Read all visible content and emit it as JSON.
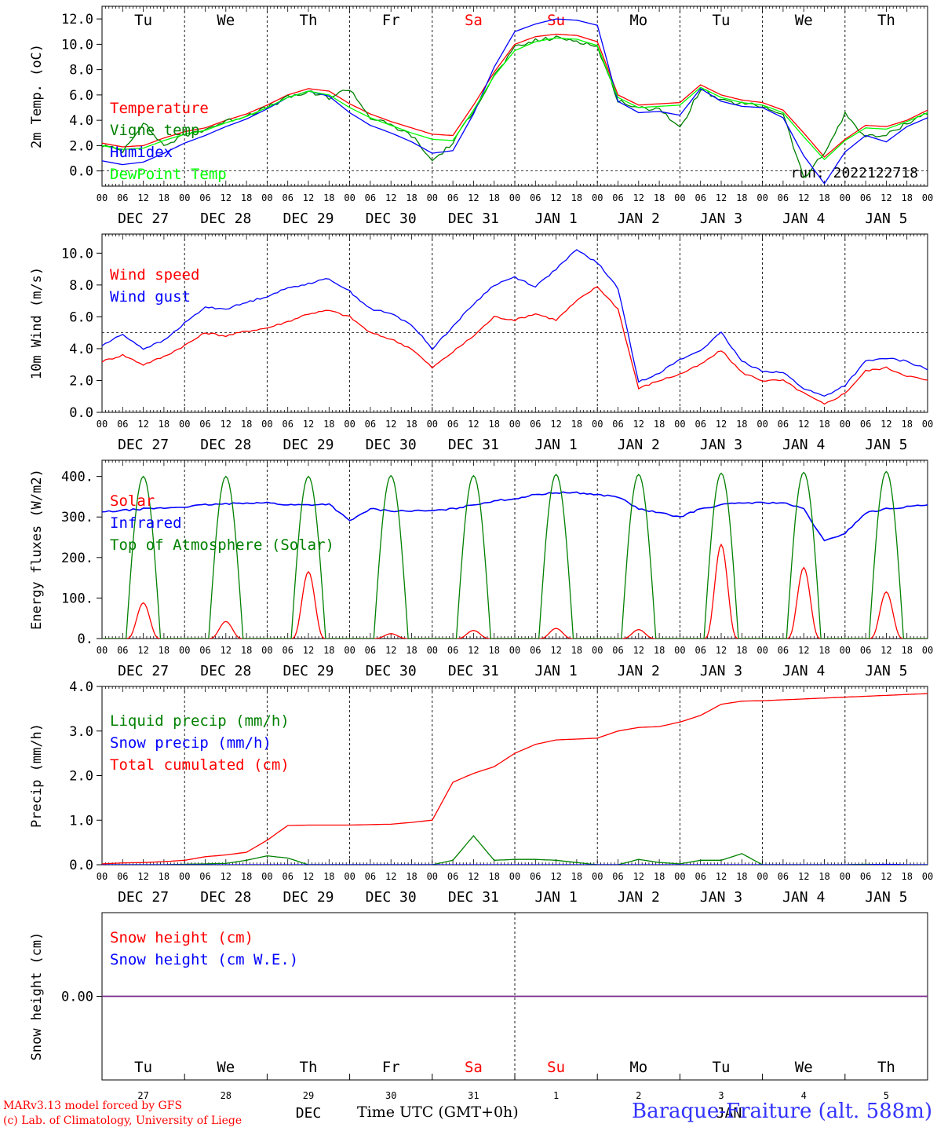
{
  "chart_data": [
    {
      "type": "line",
      "ylabel": "2m Temp. (oC)",
      "ylim": [
        -1.2,
        13.0
      ],
      "yticks": [
        0.0,
        2.0,
        4.0,
        6.0,
        8.0,
        10.0,
        12.0
      ],
      "ytick_labels": [
        "0.0",
        "2.0",
        "4.0",
        "6.0",
        "8.0",
        "10.0",
        "12.0"
      ],
      "reference_line": 0.0,
      "annotation": "run: 2022122718",
      "legend_placement": "left",
      "top_labels": [
        "Tu",
        "We",
        "Th",
        "Fr",
        "Sa",
        "Su",
        "Mo",
        "Tu",
        "We",
        "Th"
      ],
      "x": [
        0,
        6,
        12,
        18,
        24,
        30,
        36,
        42,
        48,
        54,
        60,
        66,
        72,
        78,
        84,
        90,
        96,
        102,
        108,
        114,
        120,
        126,
        132,
        138,
        144,
        150,
        156,
        162,
        168,
        174,
        180,
        186,
        192,
        198,
        204,
        210,
        216,
        222,
        228,
        234,
        240
      ],
      "series": [
        {
          "name": "Temperature",
          "color": "#ff0000",
          "values": [
            2.2,
            1.9,
            2.0,
            2.6,
            3.1,
            3.4,
            4.0,
            4.5,
            5.2,
            6.0,
            6.5,
            6.3,
            5.3,
            4.5,
            3.9,
            3.4,
            2.9,
            2.8,
            5.2,
            7.8,
            10.0,
            10.6,
            10.8,
            10.7,
            10.2,
            6.0,
            5.2,
            5.3,
            5.4,
            6.8,
            6.0,
            5.6,
            5.4,
            4.8,
            3.0,
            1.1,
            2.5,
            3.6,
            3.5,
            4.0,
            4.8
          ]
        },
        {
          "name": "Vigne temp",
          "color": "#008000",
          "values": [
            2.0,
            1.6,
            3.8,
            2.0,
            2.8,
            3.3,
            3.9,
            4.4,
            5.0,
            5.8,
            6.2,
            5.8,
            6.5,
            4.2,
            3.6,
            2.8,
            0.8,
            2.2,
            4.8,
            7.5,
            9.7,
            10.3,
            10.5,
            10.3,
            9.8,
            5.6,
            4.9,
            5.0,
            3.3,
            6.5,
            5.5,
            5.3,
            5.1,
            4.5,
            -0.6,
            1.4,
            4.5,
            2.7,
            2.8,
            3.8,
            4.6
          ]
        },
        {
          "name": "Humidex",
          "color": "#0000ff",
          "values": [
            0.8,
            0.5,
            0.7,
            1.4,
            2.2,
            2.8,
            3.5,
            4.1,
            4.9,
            5.8,
            6.3,
            5.9,
            4.6,
            3.6,
            3.0,
            2.3,
            1.4,
            1.6,
            4.5,
            8.2,
            11.0,
            11.6,
            12.0,
            11.9,
            11.5,
            5.5,
            4.6,
            4.7,
            4.4,
            6.5,
            5.5,
            5.1,
            5.0,
            4.2,
            1.2,
            -1.0,
            1.5,
            2.8,
            2.3,
            3.5,
            4.2
          ]
        },
        {
          "name": "DewPoint Temp",
          "color": "#00ff00",
          "values": [
            2.0,
            1.7,
            1.8,
            2.4,
            2.9,
            3.2,
            3.8,
            4.3,
            5.0,
            5.8,
            6.3,
            6.0,
            5.0,
            4.2,
            3.6,
            3.0,
            2.5,
            2.4,
            4.8,
            7.5,
            9.5,
            10.2,
            10.5,
            10.4,
            9.9,
            5.8,
            5.0,
            5.1,
            5.2,
            6.6,
            5.8,
            5.4,
            5.2,
            4.6,
            2.7,
            0.9,
            2.4,
            3.4,
            3.3,
            3.9,
            4.6
          ]
        }
      ]
    },
    {
      "type": "line",
      "ylabel": "10m Wind (m/s)",
      "ylim": [
        0,
        11.2
      ],
      "yticks": [
        0.0,
        2.0,
        4.0,
        6.0,
        8.0,
        10.0
      ],
      "ytick_labels": [
        "0.0",
        "2.0",
        "4.0",
        "6.0",
        "8.0",
        "10.0"
      ],
      "reference_line": 5.0,
      "legend_placement": "left",
      "x": [
        0,
        6,
        12,
        18,
        24,
        30,
        36,
        42,
        48,
        54,
        60,
        66,
        72,
        78,
        84,
        90,
        96,
        102,
        108,
        114,
        120,
        126,
        132,
        138,
        144,
        150,
        156,
        162,
        168,
        174,
        180,
        186,
        192,
        198,
        204,
        210,
        216,
        222,
        228,
        234,
        240
      ],
      "series": [
        {
          "name": "Wind speed",
          "color": "#ff0000",
          "values": [
            3.2,
            3.6,
            3.0,
            3.5,
            4.2,
            5.0,
            4.8,
            5.1,
            5.3,
            5.7,
            6.2,
            6.4,
            6.0,
            5.0,
            4.6,
            4.0,
            2.8,
            3.8,
            4.8,
            6.0,
            5.8,
            6.2,
            5.8,
            7.0,
            7.9,
            6.5,
            1.5,
            2.0,
            2.4,
            3.0,
            3.9,
            2.5,
            2.0,
            2.0,
            1.2,
            0.5,
            1.2,
            2.6,
            2.8,
            2.3,
            2.0
          ]
        },
        {
          "name": "Wind gust",
          "color": "#0000ff",
          "values": [
            4.2,
            4.9,
            4.0,
            4.5,
            5.6,
            6.6,
            6.5,
            6.9,
            7.3,
            7.8,
            8.1,
            8.4,
            7.6,
            6.5,
            6.2,
            5.5,
            4.0,
            5.4,
            6.8,
            8.0,
            8.5,
            7.9,
            9.0,
            10.2,
            9.4,
            7.8,
            1.9,
            2.5,
            3.3,
            3.9,
            5.0,
            3.2,
            2.6,
            2.5,
            1.5,
            1.0,
            1.7,
            3.2,
            3.4,
            3.2,
            2.7
          ]
        }
      ]
    },
    {
      "type": "line",
      "ylabel": "Energy fluxes (W/m2)",
      "ylim": [
        0,
        440
      ],
      "yticks": [
        0,
        100,
        200,
        300,
        400
      ],
      "ytick_labels": [
        "0.",
        "100.",
        "200.",
        "300.",
        "400."
      ],
      "legend_placement": "left",
      "x": [
        0,
        6,
        12,
        18,
        24,
        30,
        36,
        42,
        48,
        54,
        60,
        66,
        72,
        78,
        84,
        90,
        96,
        102,
        108,
        114,
        120,
        126,
        132,
        138,
        144,
        150,
        156,
        162,
        168,
        174,
        180,
        186,
        192,
        198,
        204,
        210,
        216,
        222,
        228,
        234,
        240
      ],
      "series": [
        {
          "name": "Solar",
          "color": "#ff0000",
          "daily_peaks": [
            88,
            42,
            165,
            12,
            20,
            25,
            22,
            232,
            175,
            115
          ]
        },
        {
          "name": "Infrared",
          "color": "#0000ff",
          "values": [
            312,
            316,
            320,
            322,
            325,
            330,
            332,
            335,
            335,
            330,
            330,
            332,
            290,
            320,
            315,
            315,
            315,
            320,
            330,
            340,
            345,
            355,
            360,
            360,
            355,
            350,
            320,
            310,
            300,
            320,
            330,
            335,
            335,
            335,
            320,
            240,
            260,
            310,
            320,
            325,
            330
          ]
        },
        {
          "name": "Top of Atmosphere (Solar)",
          "color": "#008000",
          "daily_peaks": [
            400,
            400,
            400,
            402,
            402,
            405,
            405,
            408,
            410,
            412
          ]
        }
      ]
    },
    {
      "type": "line",
      "ylabel": "Precip (mm/h)",
      "ylim": [
        0,
        4.0
      ],
      "yticks": [
        0.0,
        1.0,
        2.0,
        3.0,
        4.0
      ],
      "ytick_labels": [
        "0.0",
        "1.0",
        "2.0",
        "3.0",
        "4.0"
      ],
      "legend_placement": "left",
      "x": [
        0,
        6,
        12,
        18,
        24,
        30,
        36,
        42,
        48,
        54,
        60,
        66,
        72,
        78,
        84,
        90,
        96,
        102,
        108,
        114,
        120,
        126,
        132,
        138,
        144,
        150,
        156,
        162,
        168,
        174,
        180,
        186,
        192,
        198,
        204,
        210,
        216,
        222,
        228,
        234,
        240
      ],
      "series": [
        {
          "name": "Liquid precip (mm/h)",
          "color": "#008000",
          "values": [
            0,
            0,
            0,
            0,
            0.01,
            0.02,
            0.03,
            0.1,
            0.2,
            0.15,
            0,
            0,
            0,
            0,
            0,
            0,
            0,
            0.1,
            0.65,
            0.1,
            0.12,
            0.12,
            0.1,
            0.05,
            0,
            0,
            0.12,
            0.05,
            0.02,
            0.1,
            0.1,
            0.25,
            0,
            0,
            0,
            0,
            0,
            0.01,
            0,
            0,
            0
          ]
        },
        {
          "name": "Snow precip (mm/h)",
          "color": "#0000ff",
          "values": [
            0,
            0,
            0,
            0,
            0,
            0,
            0,
            0,
            0,
            0,
            0,
            0,
            0,
            0,
            0,
            0,
            0,
            0,
            0,
            0,
            0,
            0,
            0,
            0,
            0,
            0,
            0,
            0,
            0,
            0,
            0,
            0,
            0,
            0,
            0,
            0,
            0,
            0,
            0.01,
            0,
            0
          ]
        },
        {
          "name": "Total cumulated (cm)",
          "color": "#ff0000",
          "values": [
            0.02,
            0.04,
            0.05,
            0.07,
            0.1,
            0.18,
            0.22,
            0.28,
            0.55,
            0.88,
            0.89,
            0.89,
            0.89,
            0.9,
            0.91,
            0.95,
            1.0,
            1.85,
            2.05,
            2.2,
            2.5,
            2.7,
            2.8,
            2.82,
            2.84,
            3.0,
            3.08,
            3.1,
            3.2,
            3.35,
            3.6,
            3.67,
            3.68,
            3.7,
            3.72,
            3.74,
            3.76,
            3.78,
            3.8,
            3.82,
            3.84
          ]
        }
      ]
    },
    {
      "type": "line",
      "ylabel": "Snow height (cm)",
      "ylim": [
        -1,
        1
      ],
      "yticks": [
        0.0
      ],
      "ytick_labels": [
        "0.00"
      ],
      "legend_placement": "left",
      "x": [
        0,
        240
      ],
      "series": [
        {
          "name": "Snow height (cm)",
          "color": "#ff0000",
          "values": [
            0.0,
            0.0
          ]
        },
        {
          "name": "Snow height (cm W.E.)",
          "color": "#0000ff",
          "values": [
            0.0,
            0.0
          ]
        }
      ],
      "bottom_day_labels": [
        "Tu",
        "We",
        "Th",
        "Fr",
        "Sa",
        "Su",
        "Mo",
        "Tu",
        "We",
        "Th"
      ],
      "bottom_date_numbers": [
        "27",
        "28",
        "29",
        "30",
        "31",
        "1",
        "2",
        "3",
        "4",
        "5"
      ],
      "bottom_month_labels": [
        "DEC",
        "JAN"
      ]
    }
  ],
  "x_axis": {
    "hour_labels": [
      "00",
      "06",
      "12",
      "18"
    ],
    "final_hour_label": "00",
    "date_labels": [
      "DEC 27",
      "DEC 28",
      "DEC 29",
      "DEC 30",
      "DEC 31",
      "JAN  1",
      "JAN  2",
      "JAN  3",
      "JAN  4",
      "JAN  5"
    ],
    "xlabel": "Time UTC (GMT+0h)"
  },
  "colors": {
    "weekday": "#000000",
    "weekend": "#ff0000",
    "station": "#3333ff"
  },
  "footer": {
    "credit_line1": "MARv3.13 model forced by GFS",
    "credit_line2": "(c) Lab. of Climatology, University of Liege",
    "station": "Baraque-Fraiture (alt. 588m)"
  }
}
